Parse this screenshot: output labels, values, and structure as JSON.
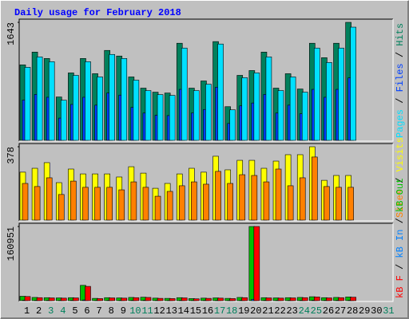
{
  "chart_data": [
    {
      "type": "bar",
      "title": "Daily usage for February 2018",
      "ylim": [
        0,
        1643
      ],
      "yticks": [
        1643
      ],
      "legend_separator": "/",
      "series": [
        {
          "name": "Pages",
          "color": "#00e0ff",
          "values": [
            1017,
            1162,
            1095,
            559,
            905,
            1095,
            883,
            1196,
            1140,
            838,
            693,
            637,
            626,
            1285,
            693,
            782,
            1341,
            425,
            872,
            939,
            1162,
            693,
            883,
            671,
            1285,
            1084,
            1285,
            1576,
            null,
            null,
            null
          ]
        },
        {
          "name": "Files",
          "color": "#0040ff",
          "values": [
            560,
            640,
            600,
            310,
            500,
            600,
            490,
            660,
            630,
            460,
            380,
            350,
            345,
            710,
            380,
            430,
            740,
            235,
            480,
            520,
            640,
            380,
            490,
            370,
            710,
            600,
            710,
            870,
            null,
            null,
            null
          ]
        },
        {
          "name": "Hits",
          "color": "#00805c",
          "values": [
            1051,
            1229,
            1140,
            604,
            939,
            1140,
            928,
            1252,
            1174,
            883,
            727,
            671,
            659,
            1352,
            727,
            827,
            1375,
            469,
            905,
            972,
            1229,
            727,
            928,
            715,
            1352,
            1151,
            1352,
            1643,
            null,
            null,
            null
          ]
        }
      ]
    },
    {
      "type": "bar",
      "ylim": [
        0,
        378
      ],
      "yticks": [
        378
      ],
      "legend_separator": "/",
      "series": [
        {
          "name": "Sites",
          "color": "#ff8000",
          "values": [
            189,
            173,
            218,
            132,
            201,
            169,
            169,
            169,
            156,
            197,
            169,
            123,
            148,
            177,
            197,
            185,
            251,
            189,
            234,
            230,
            197,
            263,
            177,
            218,
            325,
            173,
            169,
            169,
            null,
            null,
            null
          ]
        },
        {
          "name": "Visits",
          "color": "#ffff00",
          "values": [
            247,
            267,
            296,
            193,
            263,
            238,
            238,
            238,
            222,
            275,
            242,
            164,
            189,
            238,
            267,
            247,
            329,
            259,
            308,
            308,
            267,
            304,
            337,
            337,
            378,
            205,
            230,
            230,
            null,
            null,
            null
          ]
        }
      ]
    },
    {
      "type": "bar",
      "ylim": [
        0,
        160951
      ],
      "yticks": [
        160951
      ],
      "legend_separator": "/",
      "categories": [
        "1",
        "2",
        "3",
        "4",
        "5",
        "6",
        "7",
        "8",
        "9",
        "10",
        "11",
        "12",
        "13",
        "14",
        "15",
        "16",
        "17",
        "18",
        "19",
        "20",
        "21",
        "22",
        "23",
        "24",
        "25",
        "26",
        "27",
        "28",
        "29",
        "30",
        "31"
      ],
      "category_colors": [
        "#000000",
        "#000000",
        "#00805c",
        "#00805c",
        "#000000",
        "#000000",
        "#000000",
        "#000000",
        "#000000",
        "#00805c",
        "#00805c",
        "#000000",
        "#000000",
        "#000000",
        "#000000",
        "#000000",
        "#00805c",
        "#00805c",
        "#000000",
        "#000000",
        "#000000",
        "#000000",
        "#000000",
        "#00805c",
        "#00805c",
        "#000000",
        "#000000",
        "#000000",
        "#000000",
        "#000000",
        "#00805c"
      ],
      "series": [
        {
          "name": "kB F",
          "color": "#ff0000",
          "values": [
            9000,
            6500,
            6000,
            5500,
            6000,
            31000,
            4500,
            6000,
            5500,
            6500,
            7000,
            5000,
            4500,
            6000,
            4000,
            5000,
            5500,
            4500,
            6500,
            160951,
            6000,
            5500,
            6000,
            6500,
            8000,
            6000,
            6500,
            7500,
            null,
            null,
            null
          ]
        },
        {
          "name": "kB In",
          "color": "#0080ff",
          "values": [
            800,
            600,
            600,
            500,
            600,
            1500,
            400,
            600,
            500,
            600,
            700,
            500,
            400,
            600,
            400,
            500,
            500,
            400,
            600,
            3000,
            600,
            500,
            600,
            600,
            800,
            600,
            600,
            700,
            null,
            null,
            null
          ]
        },
        {
          "name": "kB Out",
          "color": "#00c000",
          "values": [
            9500,
            7000,
            6500,
            6000,
            6500,
            33240,
            5000,
            6500,
            6000,
            7000,
            7500,
            5500,
            5000,
            6500,
            4500,
            5500,
            6000,
            5000,
            7000,
            160951,
            6500,
            6000,
            6500,
            7000,
            8500,
            6500,
            7000,
            8000,
            null,
            null,
            null
          ]
        }
      ]
    }
  ]
}
